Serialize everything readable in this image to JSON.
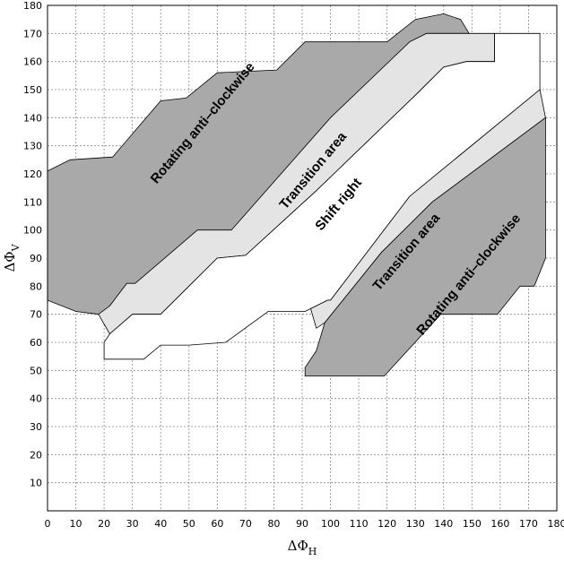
{
  "chart_data": {
    "type": "area",
    "xlabel": "ΔΦ",
    "xlabel_sub": "H",
    "ylabel": "ΔΦ",
    "ylabel_sub": "V",
    "xlim": [
      0,
      180
    ],
    "ylim": [
      0,
      180
    ],
    "xticks": [
      0,
      10,
      20,
      30,
      40,
      50,
      60,
      70,
      80,
      90,
      100,
      110,
      120,
      130,
      140,
      150,
      160,
      170,
      180
    ],
    "yticks": [
      10,
      20,
      30,
      40,
      50,
      60,
      70,
      80,
      90,
      100,
      110,
      120,
      130,
      140,
      150,
      160,
      170,
      180
    ],
    "grid": true,
    "colors": {
      "dark": "#a9a9a9",
      "light": "#e4e4e4",
      "white": "#ffffff"
    },
    "regions": [
      {
        "label": "Rotating anti–clockwise",
        "fill": "dark",
        "label_at": [
          55,
          138
        ],
        "label_angle": -50,
        "points": [
          [
            0,
            121
          ],
          [
            8,
            125
          ],
          [
            23,
            126
          ],
          [
            40,
            146
          ],
          [
            49,
            147
          ],
          [
            60,
            156
          ],
          [
            81,
            157
          ],
          [
            91,
            167
          ],
          [
            120,
            167
          ],
          [
            130,
            175
          ],
          [
            140,
            177
          ],
          [
            146,
            175
          ],
          [
            149,
            170
          ],
          [
            140,
            170
          ],
          [
            134,
            170
          ],
          [
            128,
            167
          ],
          [
            110,
            147
          ],
          [
            55,
            85
          ],
          [
            40,
            74
          ],
          [
            23,
            70
          ],
          [
            18,
            70
          ],
          [
            10,
            71
          ],
          [
            0,
            75
          ]
        ]
      },
      {
        "label": "Transition area",
        "fill": "light",
        "label_at": [
          94,
          121
        ],
        "label_angle": -50,
        "points": [
          [
            18,
            70
          ],
          [
            22,
            63
          ],
          [
            30,
            70
          ],
          [
            40,
            70
          ],
          [
            60,
            90
          ],
          [
            70,
            91
          ],
          [
            95,
            114
          ],
          [
            130,
            148
          ],
          [
            140,
            158
          ],
          [
            148,
            160
          ],
          [
            158,
            160
          ],
          [
            158,
            170
          ],
          [
            149,
            170
          ],
          [
            140,
            170
          ],
          [
            134,
            170
          ],
          [
            128,
            167
          ],
          [
            100,
            140
          ],
          [
            65,
            100
          ],
          [
            53,
            100
          ],
          [
            31,
            81
          ],
          [
            28,
            81
          ],
          [
            22,
            73
          ]
        ]
      },
      {
        "label": "Shift right",
        "fill": "white",
        "label_at": [
          103,
          109
        ],
        "label_angle": -50,
        "points": [
          [
            22,
            63
          ],
          [
            20,
            60
          ],
          [
            20,
            54
          ],
          [
            34,
            54
          ],
          [
            40,
            59
          ],
          [
            50,
            59
          ],
          [
            63,
            60
          ],
          [
            78,
            71
          ],
          [
            91,
            71
          ],
          [
            99,
            75
          ],
          [
            100,
            75
          ],
          [
            128,
            112
          ],
          [
            174,
            150
          ],
          [
            174,
            170
          ],
          [
            158,
            170
          ],
          [
            158,
            160
          ],
          [
            148,
            160
          ],
          [
            140,
            158
          ],
          [
            130,
            148
          ],
          [
            95,
            114
          ],
          [
            70,
            91
          ],
          [
            60,
            90
          ],
          [
            40,
            70
          ],
          [
            30,
            70
          ]
        ]
      },
      {
        "label": "Transition area",
        "fill": "light",
        "label_at": [
          127,
          92
        ],
        "label_angle": -50,
        "points": [
          [
            93,
            72
          ],
          [
            99,
            75
          ],
          [
            100,
            75
          ],
          [
            128,
            112
          ],
          [
            174,
            150
          ],
          [
            176,
            140
          ],
          [
            136,
            110
          ],
          [
            118,
            92
          ],
          [
            98,
            67
          ],
          [
            95,
            65
          ]
        ]
      },
      {
        "label": "Rotating anti–clockwise",
        "fill": "dark",
        "label_at": [
          149,
          84
        ],
        "label_angle": -50,
        "points": [
          [
            91,
            51
          ],
          [
            95,
            57
          ],
          [
            98,
            67
          ],
          [
            118,
            92
          ],
          [
            136,
            110
          ],
          [
            176,
            140
          ],
          [
            176,
            90
          ],
          [
            174,
            85
          ],
          [
            172,
            80
          ],
          [
            167,
            80
          ],
          [
            159,
            70
          ],
          [
            158,
            70
          ],
          [
            148,
            70
          ],
          [
            139,
            70
          ],
          [
            119,
            48
          ],
          [
            91,
            48
          ]
        ]
      }
    ]
  }
}
